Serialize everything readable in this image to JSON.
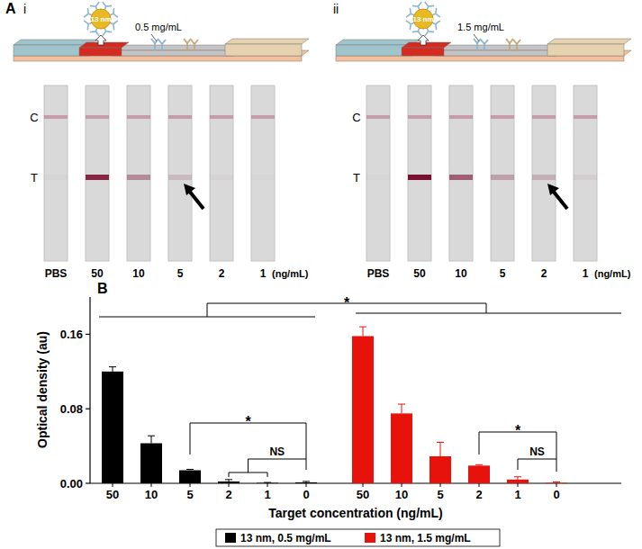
{
  "panel_a": {
    "label": "A",
    "panels": [
      {
        "label": "i",
        "particle": "13 nm",
        "concentration": "0.5 mg/mL",
        "lines": [
          "C",
          "T"
        ],
        "strips": [
          "PBS",
          "50",
          "10",
          "5",
          "2",
          "1"
        ],
        "unit": "(ng/mL)",
        "arrow_at": "5"
      },
      {
        "label": "ii",
        "particle": "13 nm",
        "concentration": "1.5 mg/mL",
        "lines": [
          "C",
          "T"
        ],
        "strips": [
          "PBS",
          "50",
          "10",
          "5",
          "2",
          "1"
        ],
        "unit": "(ng/mL)",
        "arrow_at": "2"
      }
    ]
  },
  "chart_data": {
    "type": "bar",
    "panel_label": "B",
    "x_label": "Target concentration (ng/mL)",
    "y_label": "Optical density (au)",
    "categories": [
      "50",
      "10",
      "5",
      "2",
      "1",
      "0",
      "50",
      "10",
      "5",
      "2",
      "1",
      "0"
    ],
    "series": [
      {
        "name": "13 nm, 0.5 mg/mL",
        "color": "#000000",
        "values": [
          0.12,
          0.043,
          0.014,
          0.002,
          0.0005,
          0.001,
          null,
          null,
          null,
          null,
          null,
          null
        ],
        "errors": [
          0.005,
          0.008,
          0.001,
          0.002,
          0.0004,
          0.001,
          null,
          null,
          null,
          null,
          null,
          null
        ]
      },
      {
        "name": "13 nm, 1.5 mg/mL",
        "color": "#e8120c",
        "values": [
          null,
          null,
          null,
          null,
          null,
          null,
          0.158,
          0.075,
          0.029,
          0.019,
          0.004,
          0.0005
        ],
        "errors": [
          null,
          null,
          null,
          null,
          null,
          null,
          0.01,
          0.01,
          0.015,
          0.001,
          0.003,
          0.001
        ]
      }
    ],
    "ylim": [
      0,
      0.2
    ],
    "yticks": [
      {
        "value": 0,
        "label": "0.00"
      },
      {
        "value": 0.08,
        "label": "0.08"
      },
      {
        "value": 0.16,
        "label": "0.16"
      }
    ],
    "legend": "bottom",
    "annotations": [
      "*",
      "*",
      "NS",
      "*",
      "NS"
    ]
  }
}
